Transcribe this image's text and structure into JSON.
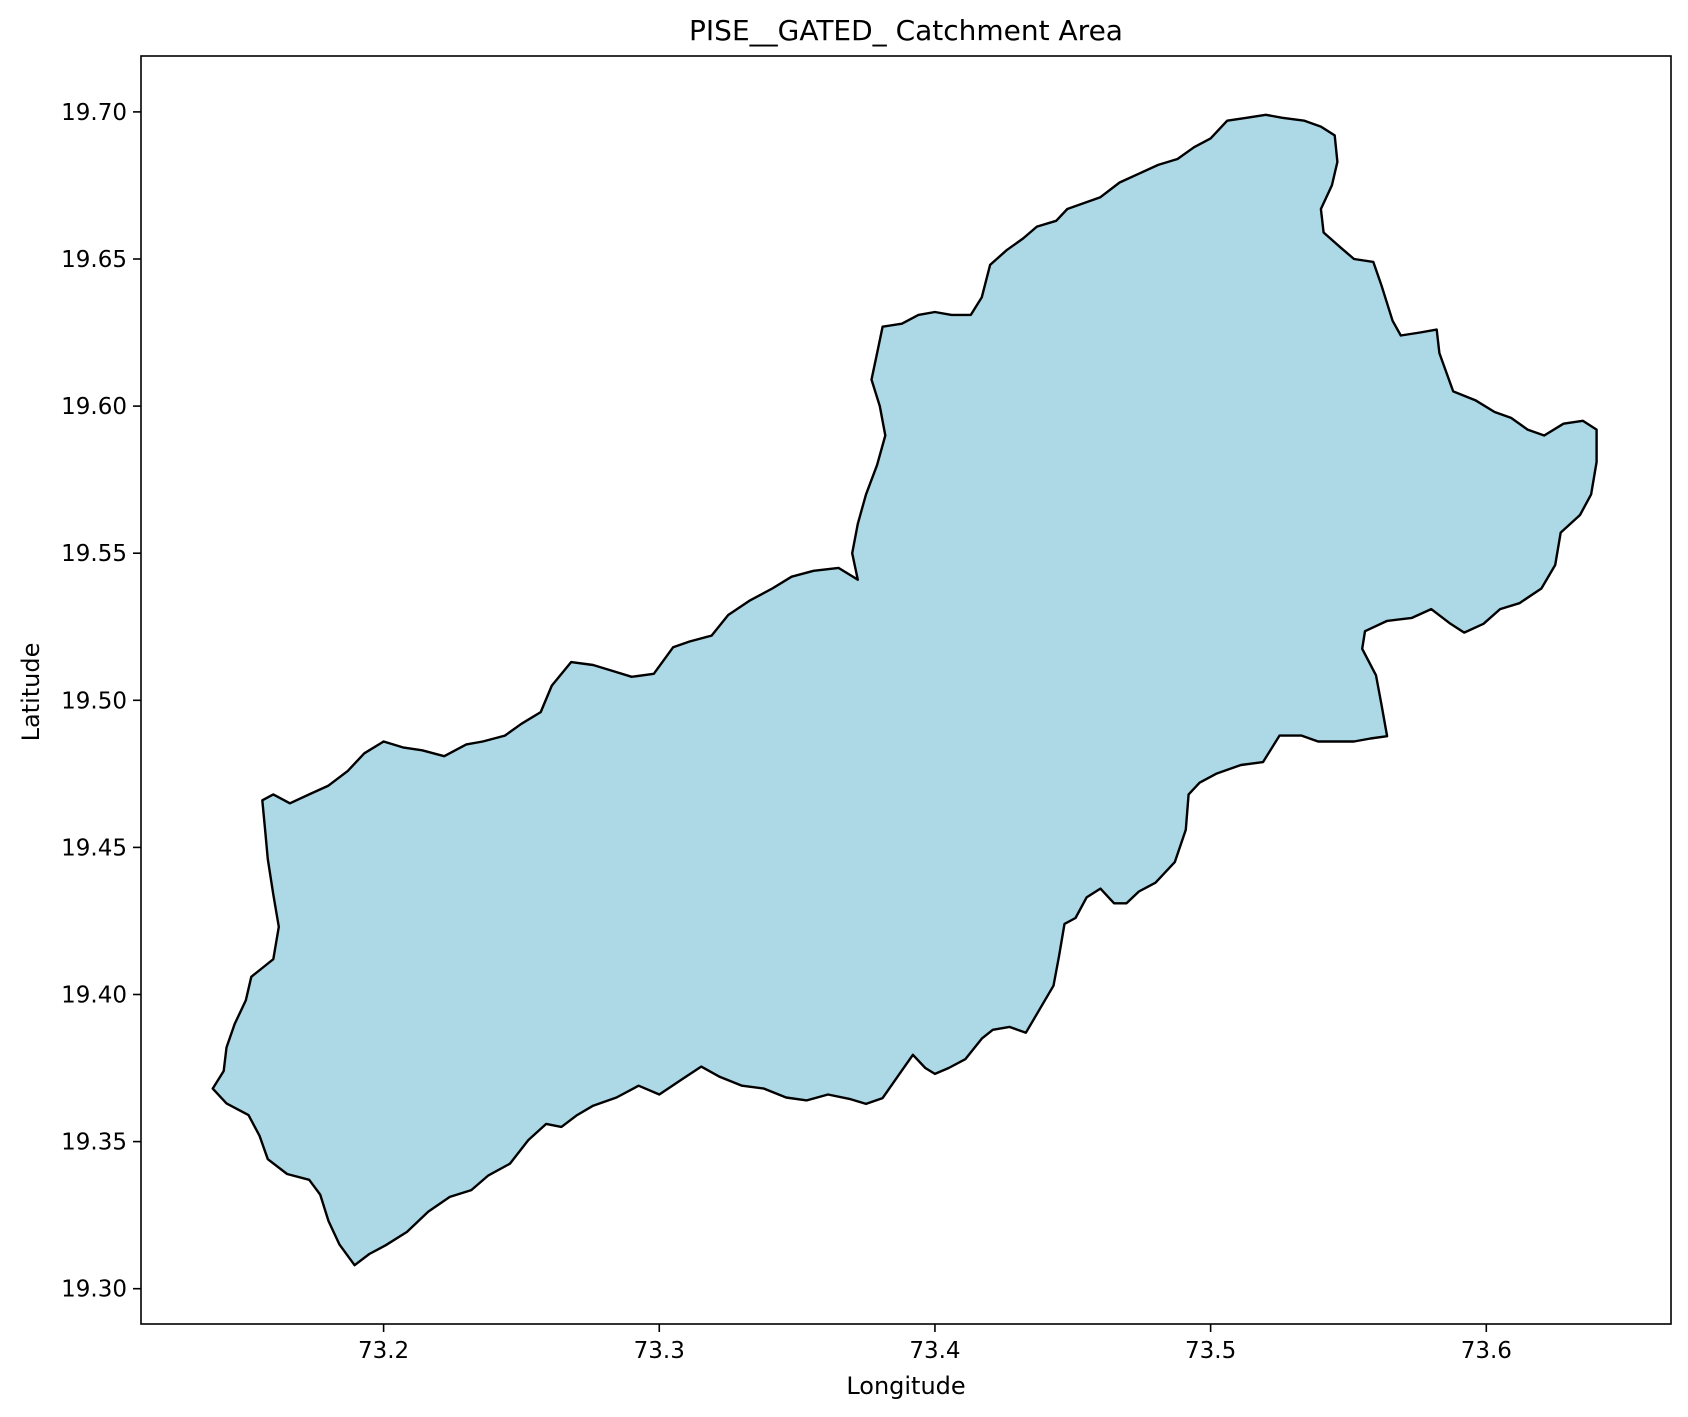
{
  "chart_data": {
    "type": "map",
    "title": "PISE__GATED_ Catchment Area",
    "xlabel": "Longitude",
    "ylabel": "Latitude",
    "xlim": [
      73.112,
      73.667
    ],
    "ylim": [
      19.288,
      19.719
    ],
    "xticks": [
      {
        "value": 73.2,
        "label": "73.2"
      },
      {
        "value": 73.3,
        "label": "73.3"
      },
      {
        "value": 73.4,
        "label": "73.4"
      },
      {
        "value": 73.5,
        "label": "73.5"
      },
      {
        "value": 73.6,
        "label": "73.6"
      }
    ],
    "yticks": [
      {
        "value": 19.3,
        "label": "19.30"
      },
      {
        "value": 19.35,
        "label": "19.35"
      },
      {
        "value": 19.4,
        "label": "19.40"
      },
      {
        "value": 19.45,
        "label": "19.45"
      },
      {
        "value": 19.5,
        "label": "19.50"
      },
      {
        "value": 19.55,
        "label": "19.55"
      },
      {
        "value": 19.6,
        "label": "19.60"
      },
      {
        "value": 19.65,
        "label": "19.65"
      },
      {
        "value": 19.7,
        "label": "19.70"
      }
    ],
    "grid": false,
    "legend": "none",
    "colors": {
      "fill": "#add8e6",
      "edge": "#000000"
    },
    "boundary": [
      [
        73.1895,
        19.308
      ],
      [
        73.1948,
        19.3118
      ],
      [
        73.2008,
        19.3148
      ],
      [
        73.2085,
        19.3193
      ],
      [
        73.2162,
        19.3262
      ],
      [
        73.224,
        19.3312
      ],
      [
        73.2318,
        19.3335
      ],
      [
        73.238,
        19.3385
      ],
      [
        73.2458,
        19.3425
      ],
      [
        73.2525,
        19.3505
      ],
      [
        73.259,
        19.356
      ],
      [
        73.2645,
        19.355
      ],
      [
        73.2702,
        19.359
      ],
      [
        73.276,
        19.3622
      ],
      [
        73.2845,
        19.365
      ],
      [
        73.2925,
        19.369
      ],
      [
        73.3,
        19.366
      ],
      [
        73.308,
        19.371
      ],
      [
        73.3152,
        19.3755
      ],
      [
        73.322,
        19.372
      ],
      [
        73.33,
        19.369
      ],
      [
        73.338,
        19.368
      ],
      [
        73.346,
        19.365
      ],
      [
        73.3535,
        19.364
      ],
      [
        73.3612,
        19.366
      ],
      [
        73.369,
        19.3645
      ],
      [
        73.375,
        19.3628
      ],
      [
        73.381,
        19.3648
      ],
      [
        73.386,
        19.3715
      ],
      [
        73.392,
        19.3795
      ],
      [
        73.3965,
        19.375
      ],
      [
        73.4,
        19.373
      ],
      [
        73.405,
        19.375
      ],
      [
        73.411,
        19.378
      ],
      [
        73.417,
        19.385
      ],
      [
        73.421,
        19.388
      ],
      [
        73.427,
        19.389
      ],
      [
        73.433,
        19.387
      ],
      [
        73.438,
        19.395
      ],
      [
        73.443,
        19.403
      ],
      [
        73.445,
        19.413
      ],
      [
        73.447,
        19.424
      ],
      [
        73.451,
        19.426
      ],
      [
        73.455,
        19.433
      ],
      [
        73.46,
        19.436
      ],
      [
        73.465,
        19.431
      ],
      [
        73.4695,
        19.431
      ],
      [
        73.474,
        19.435
      ],
      [
        73.48,
        19.438
      ],
      [
        73.487,
        19.445
      ],
      [
        73.491,
        19.456
      ],
      [
        73.492,
        19.468
      ],
      [
        73.496,
        19.472
      ],
      [
        73.502,
        19.475
      ],
      [
        73.511,
        19.478
      ],
      [
        73.519,
        19.479
      ],
      [
        73.525,
        19.488
      ],
      [
        73.533,
        19.488
      ],
      [
        73.539,
        19.486
      ],
      [
        73.545,
        19.486
      ],
      [
        73.552,
        19.486
      ],
      [
        73.558,
        19.487
      ],
      [
        73.564,
        19.4878
      ],
      [
        73.562,
        19.4985
      ],
      [
        73.56,
        19.5085
      ],
      [
        73.555,
        19.5175
      ],
      [
        73.556,
        19.5235
      ],
      [
        73.564,
        19.527
      ],
      [
        73.573,
        19.528
      ],
      [
        73.58,
        19.531
      ],
      [
        73.587,
        19.526
      ],
      [
        73.592,
        19.523
      ],
      [
        73.599,
        19.526
      ],
      [
        73.605,
        19.531
      ],
      [
        73.612,
        19.533
      ],
      [
        73.62,
        19.538
      ],
      [
        73.625,
        19.546
      ],
      [
        73.627,
        19.557
      ],
      [
        73.634,
        19.563
      ],
      [
        73.638,
        19.57
      ],
      [
        73.64,
        19.581
      ],
      [
        73.64,
        19.592
      ],
      [
        73.635,
        19.595
      ],
      [
        73.628,
        19.594
      ],
      [
        73.621,
        19.59
      ],
      [
        73.615,
        19.592
      ],
      [
        73.609,
        19.596
      ],
      [
        73.603,
        19.598
      ],
      [
        73.596,
        19.602
      ],
      [
        73.588,
        19.605
      ],
      [
        73.583,
        19.618
      ],
      [
        73.582,
        19.626
      ],
      [
        73.576,
        19.625
      ],
      [
        73.569,
        19.624
      ],
      [
        73.566,
        19.629
      ],
      [
        73.562,
        19.641
      ],
      [
        73.559,
        19.649
      ],
      [
        73.552,
        19.65
      ],
      [
        73.547,
        19.654
      ],
      [
        73.541,
        19.659
      ],
      [
        73.54,
        19.667
      ],
      [
        73.544,
        19.675
      ],
      [
        73.546,
        19.683
      ],
      [
        73.545,
        19.692
      ],
      [
        73.54,
        19.695
      ],
      [
        73.534,
        19.697
      ],
      [
        73.526,
        19.698
      ],
      [
        73.52,
        19.699
      ],
      [
        73.513,
        19.698
      ],
      [
        73.506,
        19.697
      ],
      [
        73.5,
        19.691
      ],
      [
        73.494,
        19.688
      ],
      [
        73.488,
        19.684
      ],
      [
        73.481,
        19.682
      ],
      [
        73.474,
        19.679
      ],
      [
        73.467,
        19.676
      ],
      [
        73.46,
        19.671
      ],
      [
        73.454,
        19.669
      ],
      [
        73.448,
        19.667
      ],
      [
        73.444,
        19.663
      ],
      [
        73.437,
        19.661
      ],
      [
        73.432,
        19.657
      ],
      [
        73.426,
        19.653
      ],
      [
        73.42,
        19.648
      ],
      [
        73.417,
        19.637
      ],
      [
        73.413,
        19.631
      ],
      [
        73.406,
        19.631
      ],
      [
        73.4,
        19.632
      ],
      [
        73.394,
        19.631
      ],
      [
        73.388,
        19.628
      ],
      [
        73.381,
        19.627
      ],
      [
        73.379,
        19.618
      ],
      [
        73.377,
        19.609
      ],
      [
        73.38,
        19.6
      ],
      [
        73.382,
        19.59
      ],
      [
        73.379,
        19.58
      ],
      [
        73.375,
        19.57
      ],
      [
        73.372,
        19.56
      ],
      [
        73.37,
        19.55
      ],
      [
        73.372,
        19.541
      ],
      [
        73.365,
        19.545
      ],
      [
        73.356,
        19.544
      ],
      [
        73.348,
        19.542
      ],
      [
        73.341,
        19.538
      ],
      [
        73.333,
        19.534
      ],
      [
        73.325,
        19.529
      ],
      [
        73.319,
        19.522
      ],
      [
        73.311,
        19.52
      ],
      [
        73.305,
        19.518
      ],
      [
        73.298,
        19.509
      ],
      [
        73.29,
        19.508
      ],
      [
        73.283,
        19.51
      ],
      [
        73.276,
        19.512
      ],
      [
        73.268,
        19.513
      ],
      [
        73.261,
        19.505
      ],
      [
        73.257,
        19.496
      ],
      [
        73.25,
        19.492
      ],
      [
        73.244,
        19.488
      ],
      [
        73.236,
        19.486
      ],
      [
        73.23,
        19.485
      ],
      [
        73.222,
        19.481
      ],
      [
        73.214,
        19.483
      ],
      [
        73.207,
        19.484
      ],
      [
        73.2,
        19.486
      ],
      [
        73.193,
        19.482
      ],
      [
        73.187,
        19.476
      ],
      [
        73.18,
        19.471
      ],
      [
        73.173,
        19.468
      ],
      [
        73.166,
        19.465
      ],
      [
        73.16,
        19.468
      ],
      [
        73.156,
        19.466
      ],
      [
        73.157,
        19.456
      ],
      [
        73.158,
        19.446
      ],
      [
        73.16,
        19.434
      ],
      [
        73.162,
        19.423
      ],
      [
        73.16,
        19.412
      ],
      [
        73.156,
        19.409
      ],
      [
        73.152,
        19.406
      ],
      [
        73.15,
        19.398
      ],
      [
        73.146,
        19.39
      ],
      [
        73.143,
        19.382
      ],
      [
        73.142,
        19.374
      ],
      [
        73.138,
        19.368
      ],
      [
        73.143,
        19.363
      ],
      [
        73.151,
        19.359
      ],
      [
        73.155,
        19.352
      ],
      [
        73.158,
        19.344
      ],
      [
        73.165,
        19.339
      ],
      [
        73.173,
        19.337
      ],
      [
        73.177,
        19.332
      ],
      [
        73.18,
        19.323
      ],
      [
        73.184,
        19.315
      ],
      [
        73.1895,
        19.308
      ]
    ]
  }
}
